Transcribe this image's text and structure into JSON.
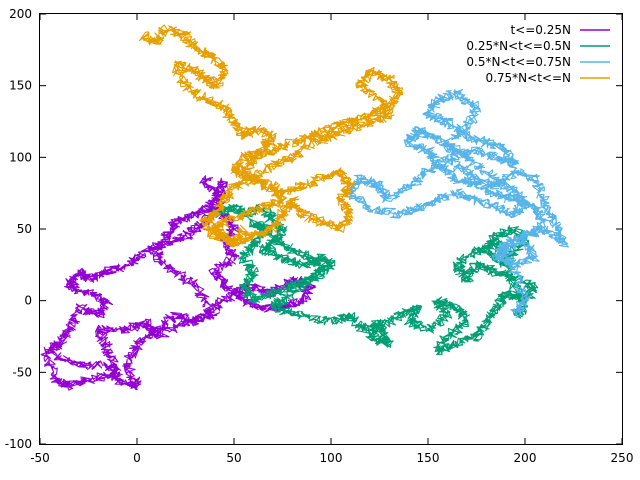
{
  "chart_data": {
    "type": "line",
    "title": "",
    "xlabel": "",
    "ylabel": "",
    "xlim": [
      -50,
      250
    ],
    "ylim": [
      -100,
      200
    ],
    "x_ticks": [
      -50,
      0,
      50,
      100,
      150,
      200,
      250
    ],
    "y_ticks": [
      -100,
      -50,
      0,
      50,
      100,
      150,
      200
    ],
    "grid": false,
    "legend_position": "top-right",
    "series": [
      {
        "name": "t<=0.25N",
        "color": "#9400d3",
        "points": [
          [
            -48,
            -35
          ],
          [
            -42,
            -55
          ],
          [
            -35,
            -60
          ],
          [
            -25,
            -55
          ],
          [
            -10,
            -50
          ],
          [
            -15,
            -35
          ],
          [
            -20,
            -20
          ],
          [
            -5,
            -20
          ],
          [
            5,
            -15
          ],
          [
            10,
            -25
          ],
          [
            25,
            -15
          ],
          [
            40,
            -10
          ],
          [
            30,
            10
          ],
          [
            20,
            20
          ],
          [
            10,
            30
          ],
          [
            15,
            45
          ],
          [
            20,
            55
          ],
          [
            30,
            60
          ],
          [
            40,
            70
          ],
          [
            45,
            85
          ],
          [
            40,
            65
          ],
          [
            35,
            55
          ],
          [
            25,
            45
          ],
          [
            15,
            40
          ],
          [
            5,
            35
          ],
          [
            -5,
            25
          ],
          [
            -15,
            20
          ],
          [
            -25,
            15
          ],
          [
            -30,
            20
          ],
          [
            -35,
            10
          ],
          [
            -25,
            5
          ],
          [
            -15,
            0
          ],
          [
            -20,
            -10
          ],
          [
            -30,
            -5
          ],
          [
            -35,
            -20
          ],
          [
            -40,
            -30
          ],
          [
            -45,
            -35
          ],
          [
            -30,
            -45
          ],
          [
            -15,
            -45
          ],
          [
            -10,
            -55
          ],
          [
            0,
            -60
          ],
          [
            -5,
            -45
          ],
          [
            0,
            -30
          ],
          [
            10,
            -20
          ],
          [
            20,
            -10
          ],
          [
            30,
            -15
          ],
          [
            40,
            -5
          ],
          [
            50,
            5
          ],
          [
            60,
            10
          ],
          [
            70,
            5
          ],
          [
            80,
            15
          ],
          [
            90,
            10
          ],
          [
            85,
            0
          ],
          [
            75,
            -5
          ],
          [
            65,
            -5
          ],
          [
            55,
            0
          ],
          [
            45,
            10
          ],
          [
            40,
            20
          ],
          [
            50,
            30
          ],
          [
            45,
            40
          ],
          [
            50,
            50
          ],
          [
            45,
            60
          ],
          [
            40,
            75
          ],
          [
            35,
            85
          ]
        ]
      },
      {
        "name": "0.25*N<t<=0.5N",
        "color": "#009e73",
        "points": [
          [
            40,
            60
          ],
          [
            50,
            65
          ],
          [
            55,
            60
          ],
          [
            65,
            65
          ],
          [
            70,
            55
          ],
          [
            75,
            50
          ],
          [
            70,
            40
          ],
          [
            65,
            35
          ],
          [
            75,
            30
          ],
          [
            85,
            25
          ],
          [
            95,
            30
          ],
          [
            100,
            25
          ],
          [
            90,
            15
          ],
          [
            80,
            10
          ],
          [
            70,
            5
          ],
          [
            60,
            0
          ],
          [
            55,
            10
          ],
          [
            60,
            20
          ],
          [
            55,
            30
          ],
          [
            60,
            40
          ],
          [
            65,
            50
          ],
          [
            60,
            55
          ],
          [
            70,
            45
          ],
          [
            80,
            35
          ],
          [
            90,
            30
          ],
          [
            95,
            20
          ],
          [
            85,
            10
          ],
          [
            75,
            0
          ],
          [
            70,
            -5
          ],
          [
            85,
            -10
          ],
          [
            100,
            -15
          ],
          [
            110,
            -10
          ],
          [
            115,
            -20
          ],
          [
            125,
            -15
          ],
          [
            120,
            -25
          ],
          [
            130,
            -30
          ],
          [
            125,
            -20
          ],
          [
            135,
            -10
          ],
          [
            145,
            -5
          ],
          [
            140,
            -15
          ],
          [
            150,
            -20
          ],
          [
            160,
            -10
          ],
          [
            155,
            0
          ],
          [
            165,
            -5
          ],
          [
            170,
            -15
          ],
          [
            160,
            -25
          ],
          [
            155,
            -35
          ],
          [
            165,
            -30
          ],
          [
            175,
            -25
          ],
          [
            180,
            -15
          ],
          [
            185,
            -5
          ],
          [
            190,
            5
          ],
          [
            200,
            0
          ],
          [
            205,
            10
          ],
          [
            195,
            15
          ],
          [
            185,
            20
          ],
          [
            175,
            25
          ],
          [
            170,
            15
          ],
          [
            165,
            25
          ],
          [
            175,
            35
          ],
          [
            185,
            40
          ],
          [
            190,
            30
          ],
          [
            200,
            40
          ],
          [
            195,
            50
          ],
          [
            185,
            45
          ],
          [
            180,
            35
          ],
          [
            190,
            25
          ],
          [
            195,
            10
          ],
          [
            200,
            -5
          ],
          [
            195,
            -10
          ]
        ]
      },
      {
        "name": "0.5*N<t<=0.75N",
        "color": "#56b4e9",
        "points": [
          [
            195,
            -10
          ],
          [
            200,
            0
          ],
          [
            195,
            20
          ],
          [
            190,
            35
          ],
          [
            200,
            45
          ],
          [
            210,
            50
          ],
          [
            220,
            40
          ],
          [
            215,
            55
          ],
          [
            210,
            70
          ],
          [
            205,
            85
          ],
          [
            195,
            90
          ],
          [
            185,
            80
          ],
          [
            175,
            85
          ],
          [
            165,
            95
          ],
          [
            160,
            110
          ],
          [
            170,
            120
          ],
          [
            175,
            135
          ],
          [
            165,
            145
          ],
          [
            155,
            140
          ],
          [
            150,
            130
          ],
          [
            160,
            125
          ],
          [
            170,
            115
          ],
          [
            180,
            110
          ],
          [
            190,
            105
          ],
          [
            195,
            95
          ],
          [
            185,
            100
          ],
          [
            175,
            105
          ],
          [
            160,
            100
          ],
          [
            150,
            90
          ],
          [
            140,
            80
          ],
          [
            130,
            70
          ],
          [
            125,
            80
          ],
          [
            115,
            85
          ],
          [
            110,
            75
          ],
          [
            120,
            65
          ],
          [
            135,
            60
          ],
          [
            145,
            65
          ],
          [
            155,
            70
          ],
          [
            165,
            75
          ],
          [
            175,
            70
          ],
          [
            185,
            65
          ],
          [
            195,
            60
          ],
          [
            200,
            70
          ],
          [
            190,
            80
          ],
          [
            180,
            90
          ],
          [
            170,
            100
          ],
          [
            160,
            110
          ],
          [
            150,
            115
          ],
          [
            145,
            120
          ],
          [
            140,
            110
          ],
          [
            150,
            105
          ],
          [
            155,
            95
          ],
          [
            165,
            85
          ],
          [
            175,
            80
          ],
          [
            185,
            75
          ],
          [
            195,
            70
          ],
          [
            205,
            65
          ],
          [
            210,
            55
          ],
          [
            200,
            45
          ],
          [
            190,
            40
          ],
          [
            185,
            30
          ],
          [
            195,
            25
          ],
          [
            205,
            30
          ],
          [
            200,
            40
          ]
        ]
      },
      {
        "name": "0.75*N<t<=N",
        "color": "#e69f00",
        "points": [
          [
            3,
            185
          ],
          [
            10,
            180
          ],
          [
            15,
            190
          ],
          [
            25,
            185
          ],
          [
            30,
            175
          ],
          [
            40,
            170
          ],
          [
            45,
            160
          ],
          [
            40,
            150
          ],
          [
            35,
            155
          ],
          [
            30,
            160
          ],
          [
            20,
            165
          ],
          [
            25,
            150
          ],
          [
            35,
            140
          ],
          [
            45,
            135
          ],
          [
            50,
            125
          ],
          [
            55,
            115
          ],
          [
            60,
            120
          ],
          [
            70,
            115
          ],
          [
            65,
            105
          ],
          [
            55,
            100
          ],
          [
            50,
            90
          ],
          [
            60,
            85
          ],
          [
            70,
            95
          ],
          [
            80,
            100
          ],
          [
            90,
            110
          ],
          [
            100,
            115
          ],
          [
            110,
            120
          ],
          [
            120,
            125
          ],
          [
            130,
            130
          ],
          [
            125,
            140
          ],
          [
            115,
            150
          ],
          [
            120,
            160
          ],
          [
            130,
            155
          ],
          [
            135,
            145
          ],
          [
            130,
            135
          ],
          [
            120,
            130
          ],
          [
            110,
            125
          ],
          [
            100,
            120
          ],
          [
            90,
            115
          ],
          [
            80,
            110
          ],
          [
            70,
            105
          ],
          [
            60,
            100
          ],
          [
            55,
            90
          ],
          [
            65,
            80
          ],
          [
            75,
            75
          ],
          [
            85,
            80
          ],
          [
            95,
            85
          ],
          [
            105,
            90
          ],
          [
            110,
            80
          ],
          [
            105,
            70
          ],
          [
            110,
            60
          ],
          [
            105,
            50
          ],
          [
            95,
            55
          ],
          [
            85,
            60
          ],
          [
            80,
            70
          ],
          [
            75,
            60
          ],
          [
            70,
            50
          ],
          [
            60,
            45
          ],
          [
            50,
            40
          ],
          [
            45,
            45
          ],
          [
            40,
            50
          ],
          [
            45,
            55
          ],
          [
            55,
            60
          ],
          [
            65,
            65
          ],
          [
            75,
            70
          ],
          [
            70,
            80
          ],
          [
            60,
            85
          ],
          [
            50,
            80
          ],
          [
            45,
            70
          ],
          [
            40,
            60
          ],
          [
            35,
            55
          ],
          [
            40,
            45
          ],
          [
            50,
            40
          ],
          [
            55,
            50
          ]
        ]
      }
    ]
  }
}
